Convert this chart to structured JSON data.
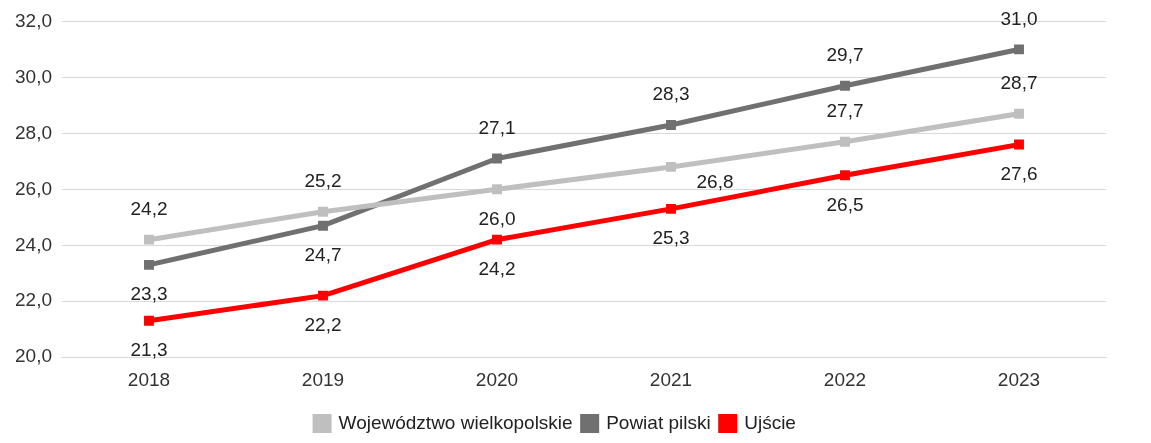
{
  "chart_data": {
    "type": "line",
    "categories": [
      "2018",
      "2019",
      "2020",
      "2021",
      "2022",
      "2023"
    ],
    "series": [
      {
        "name": "Województwo wielkopolskie",
        "color": "#bfbfbf",
        "values": [
          24.2,
          25.2,
          26.0,
          26.8,
          27.7,
          28.7
        ],
        "value_labels": [
          "24,2",
          "25,2",
          "26,0",
          "26,8",
          "27,7",
          "28,7"
        ]
      },
      {
        "name": "Powiat pilski",
        "color": "#707070",
        "values": [
          23.3,
          24.7,
          27.1,
          28.3,
          29.7,
          31.0
        ],
        "value_labels": [
          "23,3",
          "24,7",
          "27,1",
          "28,3",
          "29,7",
          "31,0"
        ]
      },
      {
        "name": "Ujście",
        "color": "#ff0000",
        "values": [
          21.3,
          22.2,
          24.2,
          25.3,
          26.5,
          27.6
        ],
        "value_labels": [
          "21,3",
          "22,2",
          "24,2",
          "25,3",
          "26,5",
          "27,6"
        ]
      }
    ],
    "ylim": [
      20,
      32
    ],
    "yticks": [
      {
        "value": 20,
        "label": "20,0"
      },
      {
        "value": 22,
        "label": "22,0"
      },
      {
        "value": 24,
        "label": "24,0"
      },
      {
        "value": 26,
        "label": "26,0"
      },
      {
        "value": 28,
        "label": "28,0"
      },
      {
        "value": 30,
        "label": "30,0"
      },
      {
        "value": 32,
        "label": "32,0"
      }
    ],
    "grid": "y",
    "legend": "bottom",
    "marker": "square",
    "line_style": "solid"
  }
}
